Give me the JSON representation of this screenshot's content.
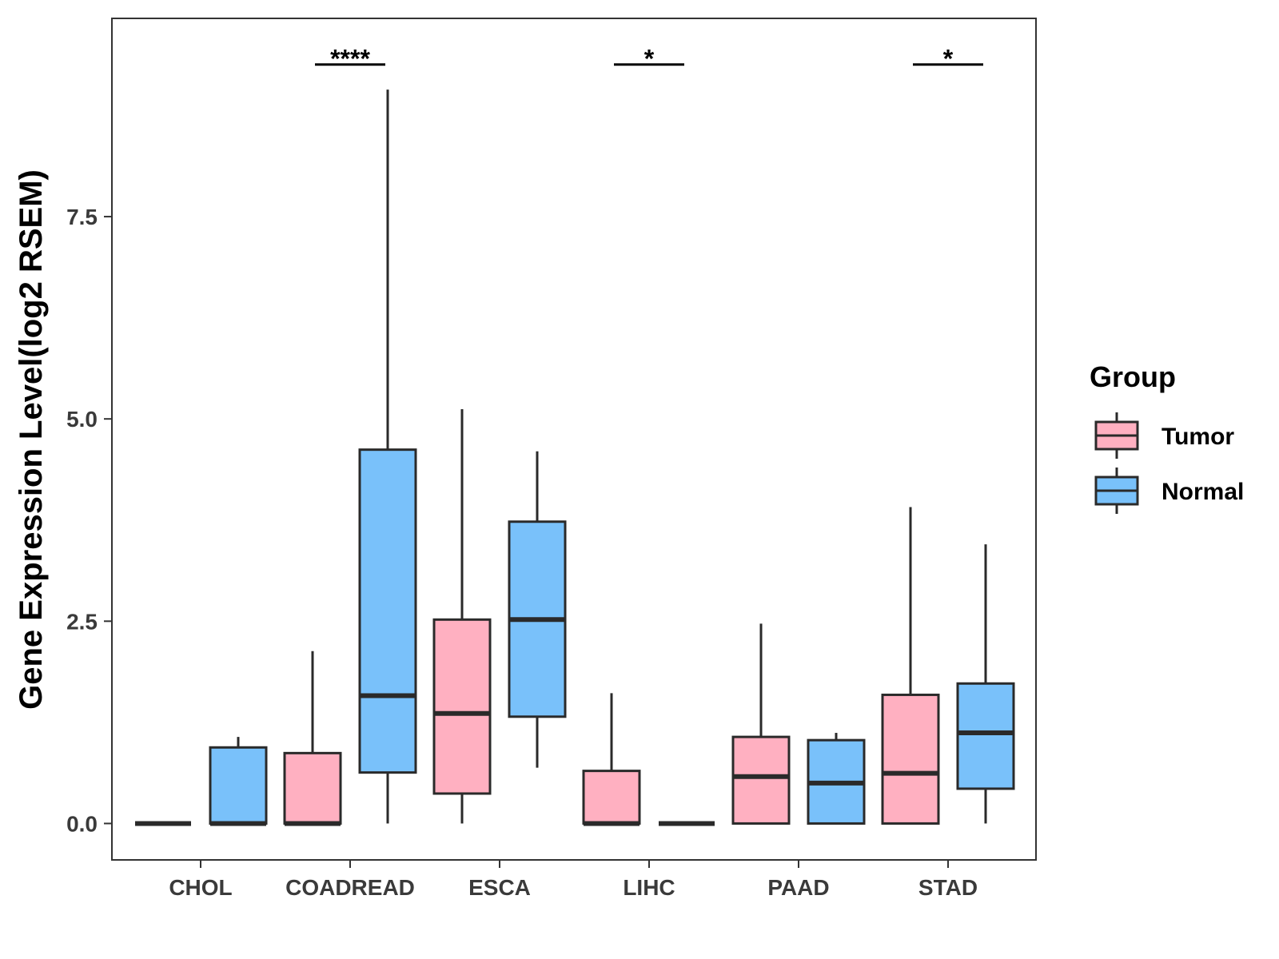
{
  "chart_data": {
    "type": "boxplot",
    "title": "",
    "xlabel": "",
    "ylabel": "Gene Expression Level(log2 RSEM)",
    "ylim": [
      -0.45,
      9.95
    ],
    "yticks": [
      0.0,
      2.5,
      5.0,
      7.5
    ],
    "ytick_labels": [
      "0.0",
      "2.5",
      "5.0",
      "7.5"
    ],
    "grid": false,
    "legend": {
      "title": "Group",
      "position": "right",
      "entries": [
        {
          "name": "Tumor",
          "color": "#FFB0C1"
        },
        {
          "name": "Normal",
          "color": "#79C1FA"
        }
      ]
    },
    "categories": [
      "CHOL",
      "COADREAD",
      "ESCA",
      "LIHC",
      "PAAD",
      "STAD"
    ],
    "series": [
      {
        "name": "Tumor",
        "color": "#FFB0C1",
        "boxes": [
          {
            "whislo": 0.0,
            "q1": 0.0,
            "med": 0.0,
            "q3": 0.0,
            "whishi": 0.0
          },
          {
            "whislo": 0.0,
            "q1": 0.0,
            "med": 0.0,
            "q3": 0.87,
            "whishi": 2.13
          },
          {
            "whislo": 0.0,
            "q1": 0.37,
            "med": 1.36,
            "q3": 2.52,
            "whishi": 5.12
          },
          {
            "whislo": 0.0,
            "q1": 0.0,
            "med": 0.0,
            "q3": 0.65,
            "whishi": 1.61
          },
          {
            "whislo": 0.0,
            "q1": 0.0,
            "med": 0.58,
            "q3": 1.07,
            "whishi": 2.47
          },
          {
            "whislo": 0.0,
            "q1": 0.0,
            "med": 0.62,
            "q3": 1.59,
            "whishi": 3.91
          }
        ]
      },
      {
        "name": "Normal",
        "color": "#79C1FA",
        "boxes": [
          {
            "whislo": 0.0,
            "q1": 0.0,
            "med": 0.0,
            "q3": 0.94,
            "whishi": 1.07
          },
          {
            "whislo": 0.0,
            "q1": 0.63,
            "med": 1.58,
            "q3": 4.62,
            "whishi": 9.07
          },
          {
            "whislo": 0.69,
            "q1": 1.32,
            "med": 2.52,
            "q3": 3.73,
            "whishi": 4.6
          },
          {
            "whislo": 0.0,
            "q1": 0.0,
            "med": 0.0,
            "q3": 0.0,
            "whishi": 0.0
          },
          {
            "whislo": 0.0,
            "q1": 0.0,
            "med": 0.5,
            "q3": 1.03,
            "whishi": 1.12
          },
          {
            "whislo": 0.0,
            "q1": 0.43,
            "med": 1.12,
            "q3": 1.73,
            "whishi": 3.45
          }
        ]
      }
    ],
    "annotations": [
      {
        "category": "COADREAD",
        "label": "****",
        "y": 9.38
      },
      {
        "category": "LIHC",
        "label": "*",
        "y": 9.38
      },
      {
        "category": "STAD",
        "label": "*",
        "y": 9.38
      }
    ]
  }
}
